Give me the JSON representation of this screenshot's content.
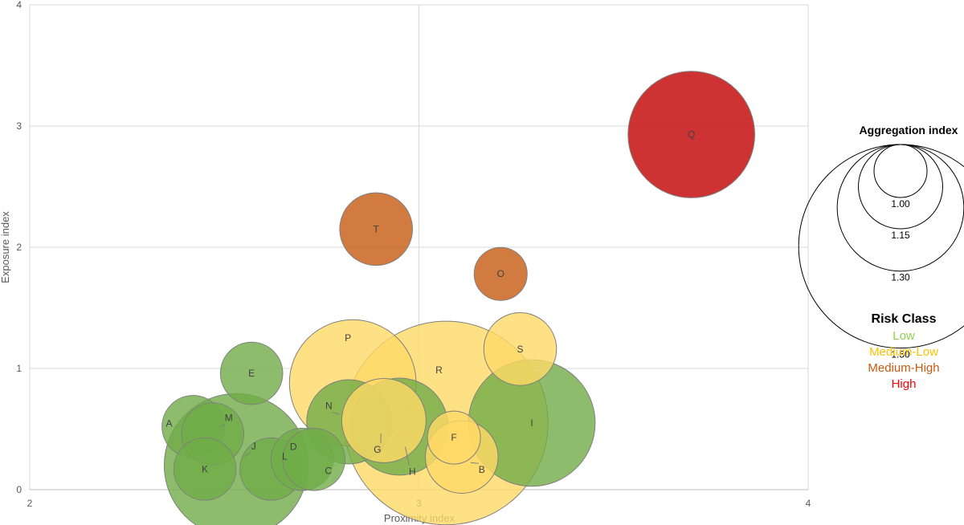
{
  "chart_data": {
    "type": "scatter",
    "subtype": "bubble",
    "xlabel": "Proximity index",
    "ylabel": "Exposure index",
    "xlim": [
      2,
      4
    ],
    "ylim": [
      0,
      4
    ],
    "x_ticks": [
      "2",
      "3",
      "4"
    ],
    "y_ticks": [
      "0",
      "1",
      "2",
      "3",
      "4"
    ],
    "grid": true,
    "points": [
      {
        "label": "A",
        "x": 2.42,
        "y": 0.52,
        "size": 1.05,
        "class": "Low"
      },
      {
        "label": "M",
        "x": 2.47,
        "y": 0.46,
        "size": 1.05,
        "class": "Low"
      },
      {
        "label": "J",
        "x": 2.53,
        "y": 0.2,
        "size": 1.35,
        "class": "Low"
      },
      {
        "label": "K",
        "x": 2.45,
        "y": 0.17,
        "size": 1.05,
        "class": "Low"
      },
      {
        "label": "L",
        "x": 2.62,
        "y": 0.17,
        "size": 1.05,
        "class": "Low"
      },
      {
        "label": "D",
        "x": 2.7,
        "y": 0.25,
        "size": 1.05,
        "class": "Low"
      },
      {
        "label": "C",
        "x": 2.73,
        "y": 0.25,
        "size": 1.05,
        "class": "Low"
      },
      {
        "label": "E",
        "x": 2.57,
        "y": 0.96,
        "size": 1.05,
        "class": "Low"
      },
      {
        "label": "N",
        "x": 2.82,
        "y": 0.56,
        "size": 1.15,
        "class": "Low"
      },
      {
        "label": "G",
        "x": 2.91,
        "y": 0.57,
        "size": 1.15,
        "class": "Medium-Low"
      },
      {
        "label": "H",
        "x": 2.95,
        "y": 0.52,
        "size": 1.2,
        "class": "Low"
      },
      {
        "label": "P",
        "x": 2.83,
        "y": 0.88,
        "size": 1.3,
        "class": "Medium-Low"
      },
      {
        "label": "R",
        "x": 3.07,
        "y": 0.55,
        "size": 1.5,
        "class": "Medium-Low"
      },
      {
        "label": "F",
        "x": 3.09,
        "y": 0.43,
        "size": 1.0,
        "class": "Medium-Low"
      },
      {
        "label": "B",
        "x": 3.11,
        "y": 0.27,
        "size": 1.1,
        "class": "Medium-Low"
      },
      {
        "label": "I",
        "x": 3.29,
        "y": 0.55,
        "size": 1.3,
        "class": "Low"
      },
      {
        "label": "S",
        "x": 3.26,
        "y": 1.16,
        "size": 1.1,
        "class": "Medium-Low"
      },
      {
        "label": "O",
        "x": 3.21,
        "y": 1.78,
        "size": 1.0,
        "class": "Medium-High"
      },
      {
        "label": "T",
        "x": 2.89,
        "y": 2.15,
        "size": 1.1,
        "class": "Medium-High"
      },
      {
        "label": "Q",
        "x": 3.7,
        "y": 2.93,
        "size": 1.3,
        "class": "High"
      }
    ]
  },
  "size_legend": {
    "title": "Aggregation index",
    "values": [
      "1.00",
      "1.15",
      "1.30",
      "1.50"
    ]
  },
  "risk_legend": {
    "title": "Risk Class",
    "items": [
      {
        "label": "Low",
        "color": "#92d050"
      },
      {
        "label": "Medium-Low",
        "color": "#ffc000"
      },
      {
        "label": "Medium-High",
        "color": "#c55a11"
      },
      {
        "label": "High",
        "color": "#ff0000"
      }
    ]
  },
  "colors": {
    "Low": "#70ad47",
    "Medium-Low": "#ffd966",
    "Medium-High": "#c55a11",
    "High": "#c00000",
    "grid": "#d9d9d9",
    "bubble_stroke": "#7f7f7f"
  }
}
